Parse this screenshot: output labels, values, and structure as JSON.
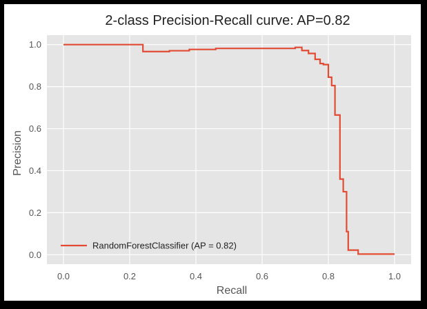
{
  "chart_data": {
    "type": "line",
    "title": "2-class Precision-Recall curve: AP=0.82",
    "xlabel": "Recall",
    "ylabel": "Precision",
    "xlim": [
      -0.05,
      1.05
    ],
    "ylim": [
      -0.045,
      1.045
    ],
    "xticks": [
      0.0,
      0.2,
      0.4,
      0.6,
      0.8,
      1.0
    ],
    "xtick_labels": [
      "0.0",
      "0.2",
      "0.4",
      "0.6",
      "0.8",
      "1.0"
    ],
    "yticks": [
      0.0,
      0.2,
      0.4,
      0.6,
      0.8,
      1.0
    ],
    "ytick_labels": [
      "0.0",
      "0.2",
      "0.4",
      "0.6",
      "0.8",
      "1.0"
    ],
    "grid": true,
    "style": "ggplot",
    "legend_position": "lower-left",
    "series": [
      {
        "name": "RandomForestClassifier (AP = 0.82)",
        "color": "#E24A33",
        "drawstyle": "steps-post",
        "recall": [
          0.0,
          0.24,
          0.24,
          0.32,
          0.32,
          0.38,
          0.38,
          0.46,
          0.46,
          0.62,
          0.62,
          0.7,
          0.7,
          0.72,
          0.72,
          0.74,
          0.74,
          0.76,
          0.76,
          0.775,
          0.775,
          0.785,
          0.785,
          0.8,
          0.8,
          0.81,
          0.81,
          0.82,
          0.82,
          0.835,
          0.835,
          0.84,
          0.84,
          0.845,
          0.845,
          0.855,
          0.855,
          0.86,
          0.86,
          0.89,
          0.89,
          1.0
        ],
        "precision": [
          1.0,
          1.0,
          0.967,
          0.967,
          0.971,
          0.971,
          0.977,
          0.977,
          0.982,
          0.982,
          0.982,
          0.982,
          0.987,
          0.987,
          0.972,
          0.972,
          0.958,
          0.958,
          0.93,
          0.93,
          0.91,
          0.91,
          0.905,
          0.905,
          0.845,
          0.845,
          0.805,
          0.805,
          0.665,
          0.665,
          0.36,
          0.36,
          0.36,
          0.36,
          0.3,
          0.3,
          0.11,
          0.11,
          0.022,
          0.022,
          0.003,
          0.003
        ]
      }
    ]
  }
}
